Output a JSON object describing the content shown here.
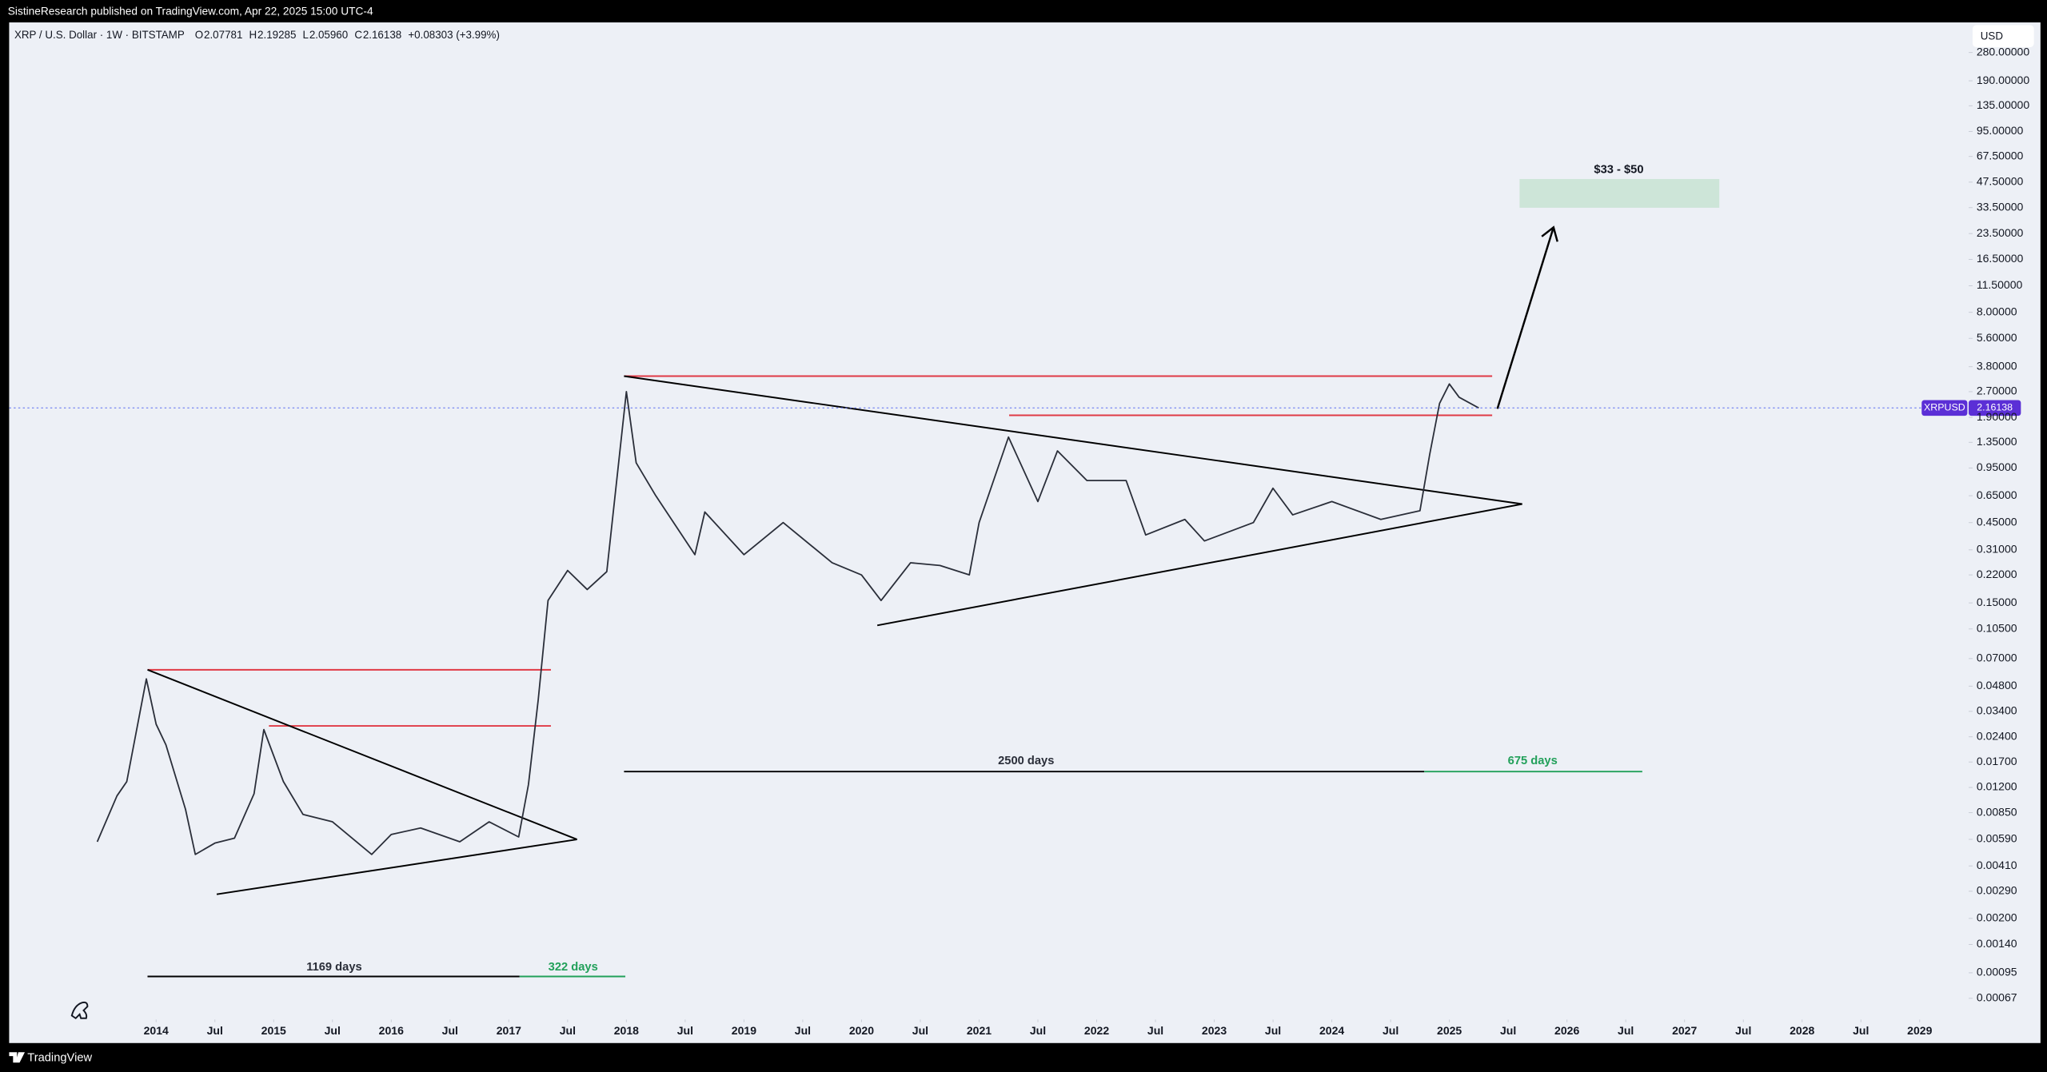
{
  "header": {
    "text": "SistineResearch published on TradingView.com, Apr 22, 2025 15:00 UTC-4"
  },
  "footer": {
    "brand": "TradingView"
  },
  "chart_data": {
    "type": "line",
    "title": "XRP / U.S. Dollar · 1W · BITSTAMP",
    "ohlc": [
      {
        "label": "O",
        "value": "2.07781"
      },
      {
        "label": "H",
        "value": "2.19285"
      },
      {
        "label": "L",
        "value": "2.05960"
      },
      {
        "label": "C",
        "value": "2.16138"
      }
    ],
    "change": "+0.08303 (+3.99%)",
    "currency": "USD",
    "color": "#2a2e39",
    "log_scale": true,
    "grid": false,
    "x": [
      "2013-07",
      "2013-09",
      "2013-10",
      "2013-12",
      "2014-01",
      "2014-02",
      "2014-04",
      "2014-05",
      "2014-07",
      "2014-09",
      "2014-11",
      "2014-12",
      "2015-02",
      "2015-04",
      "2015-07",
      "2015-11",
      "2016-01",
      "2016-04",
      "2016-08",
      "2016-11",
      "2017-02",
      "2017-03",
      "2017-04",
      "2017-05",
      "2017-07",
      "2017-09",
      "2017-11",
      "2018-01",
      "2018-02",
      "2018-04",
      "2018-08",
      "2018-09",
      "2019-01",
      "2019-05",
      "2019-10",
      "2020-01",
      "2020-03",
      "2020-06",
      "2020-09",
      "2020-12",
      "2021-01",
      "2021-04",
      "2021-07",
      "2021-09",
      "2021-12",
      "2022-04",
      "2022-06",
      "2022-10",
      "2022-12",
      "2023-05",
      "2023-07",
      "2023-09",
      "2024-01",
      "2024-06",
      "2024-10",
      "2024-11",
      "2024-12",
      "2025-01",
      "2025-02",
      "2025-04"
    ],
    "values": [
      0.0057,
      0.0107,
      0.013,
      0.053,
      0.0285,
      0.0215,
      0.0089,
      0.0048,
      0.0056,
      0.006,
      0.011,
      0.0265,
      0.013,
      0.0083,
      0.0075,
      0.0048,
      0.0063,
      0.0069,
      0.0057,
      0.0075,
      0.0061,
      0.0125,
      0.04,
      0.155,
      0.234,
      0.18,
      0.23,
      2.7,
      1.02,
      0.65,
      0.29,
      0.52,
      0.29,
      0.45,
      0.26,
      0.22,
      0.155,
      0.26,
      0.25,
      0.22,
      0.45,
      1.45,
      0.6,
      1.2,
      0.8,
      0.8,
      0.38,
      0.47,
      0.35,
      0.45,
      0.72,
      0.5,
      0.6,
      0.47,
      0.53,
      1.15,
      2.3,
      3.0,
      2.5,
      2.16138
    ],
    "price_tag": {
      "symbol": "XRPUSD",
      "value": 2.16138
    },
    "xlim": [
      "2012-10",
      "2029-06"
    ],
    "xticks": [
      {
        "value": "2014-01",
        "label": "2014"
      },
      {
        "value": "2014-07",
        "label": "Jul"
      },
      {
        "value": "2015-01",
        "label": "2015"
      },
      {
        "value": "2015-07",
        "label": "Jul"
      },
      {
        "value": "2016-01",
        "label": "2016"
      },
      {
        "value": "2016-07",
        "label": "Jul"
      },
      {
        "value": "2017-01",
        "label": "2017"
      },
      {
        "value": "2017-07",
        "label": "Jul"
      },
      {
        "value": "2018-01",
        "label": "2018"
      },
      {
        "value": "2018-07",
        "label": "Jul"
      },
      {
        "value": "2019-01",
        "label": "2019"
      },
      {
        "value": "2019-07",
        "label": "Jul"
      },
      {
        "value": "2020-01",
        "label": "2020"
      },
      {
        "value": "2020-07",
        "label": "Jul"
      },
      {
        "value": "2021-01",
        "label": "2021"
      },
      {
        "value": "2021-07",
        "label": "Jul"
      },
      {
        "value": "2022-01",
        "label": "2022"
      },
      {
        "value": "2022-07",
        "label": "Jul"
      },
      {
        "value": "2023-01",
        "label": "2023"
      },
      {
        "value": "2023-07",
        "label": "Jul"
      },
      {
        "value": "2024-01",
        "label": "2024"
      },
      {
        "value": "2024-07",
        "label": "Jul"
      },
      {
        "value": "2025-01",
        "label": "2025"
      },
      {
        "value": "2025-07",
        "label": "Jul"
      },
      {
        "value": "2026-01",
        "label": "2026"
      },
      {
        "value": "2026-07",
        "label": "Jul"
      },
      {
        "value": "2027-01",
        "label": "2027"
      },
      {
        "value": "2027-07",
        "label": "Jul"
      },
      {
        "value": "2028-01",
        "label": "2028"
      },
      {
        "value": "2028-07",
        "label": "Jul"
      },
      {
        "value": "2029-01",
        "label": "2029"
      }
    ],
    "ylim": [
      0.00051,
      415
    ],
    "yticks": [
      {
        "value": 280,
        "label": "280.00000"
      },
      {
        "value": 190,
        "label": "190.00000"
      },
      {
        "value": 135,
        "label": "135.00000"
      },
      {
        "value": 95,
        "label": "95.00000"
      },
      {
        "value": 67.5,
        "label": "67.50000"
      },
      {
        "value": 47.5,
        "label": "47.50000"
      },
      {
        "value": 33.5,
        "label": "33.50000"
      },
      {
        "value": 23.5,
        "label": "23.50000"
      },
      {
        "value": 16.5,
        "label": "16.50000"
      },
      {
        "value": 11.5,
        "label": "11.50000"
      },
      {
        "value": 8,
        "label": "8.00000"
      },
      {
        "value": 5.6,
        "label": "5.60000"
      },
      {
        "value": 3.8,
        "label": "3.80000"
      },
      {
        "value": 2.7,
        "label": "2.70000"
      },
      {
        "value": 1.9,
        "label": "1.90000"
      },
      {
        "value": 1.35,
        "label": "1.35000"
      },
      {
        "value": 0.95,
        "label": "0.95000"
      },
      {
        "value": 0.65,
        "label": "0.65000"
      },
      {
        "value": 0.45,
        "label": "0.45000"
      },
      {
        "value": 0.31,
        "label": "0.31000"
      },
      {
        "value": 0.22,
        "label": "0.22000"
      },
      {
        "value": 0.15,
        "label": "0.15000"
      },
      {
        "value": 0.105,
        "label": "0.10500"
      },
      {
        "value": 0.07,
        "label": "0.07000"
      },
      {
        "value": 0.048,
        "label": "0.04800"
      },
      {
        "value": 0.034,
        "label": "0.03400"
      },
      {
        "value": 0.024,
        "label": "0.02400"
      },
      {
        "value": 0.017,
        "label": "0.01700"
      },
      {
        "value": 0.012,
        "label": "0.01200"
      },
      {
        "value": 0.0085,
        "label": "0.00850"
      },
      {
        "value": 0.0059,
        "label": "0.00590"
      },
      {
        "value": 0.0041,
        "label": "0.00410"
      },
      {
        "value": 0.0029,
        "label": "0.00290"
      },
      {
        "value": 0.002,
        "label": "0.00200"
      },
      {
        "value": 0.0014,
        "label": "0.00140"
      },
      {
        "value": 0.00095,
        "label": "0.00095"
      },
      {
        "value": 0.00067,
        "label": "0.00067"
      }
    ],
    "annotations": {
      "target": "$33 - $50",
      "span1": "1169 days",
      "span2": "322 days",
      "span3": "2500 days",
      "span4": "675 days"
    }
  }
}
